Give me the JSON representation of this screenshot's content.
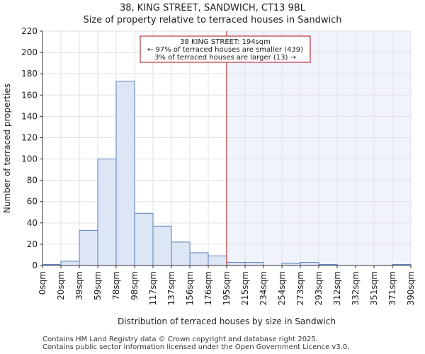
{
  "chart_data": {
    "type": "bar",
    "title": "38, KING STREET, SANDWICH, CT13 9BL",
    "subtitle": "Size of property relative to terraced houses in Sandwich",
    "xlabel": "Distribution of terraced houses by size in Sandwich",
    "ylabel": "Number of terraced properties",
    "ylim": [
      0,
      220
    ],
    "yticks": [
      0,
      20,
      40,
      60,
      80,
      100,
      120,
      140,
      160,
      180,
      200,
      220
    ],
    "x_tick_labels": [
      "0sqm",
      "20sqm",
      "39sqm",
      "59sqm",
      "78sqm",
      "98sqm",
      "117sqm",
      "137sqm",
      "156sqm",
      "176sqm",
      "195sqm",
      "215sqm",
      "234sqm",
      "254sqm",
      "273sqm",
      "293sqm",
      "312sqm",
      "332sqm",
      "351sqm",
      "371sqm",
      "390sqm"
    ],
    "values": [
      1,
      4,
      33,
      100,
      173,
      49,
      37,
      22,
      12,
      9,
      3,
      3,
      0,
      2,
      3,
      1,
      0,
      0,
      0,
      1
    ],
    "marker_bin_position": 10,
    "annotation": {
      "line1": "38 KING STREET: 194sqm",
      "line2": "← 97% of terraced houses are smaller (439)",
      "line3": "3% of terraced houses are larger (13) →"
    },
    "colors": {
      "bar_fill": "#dce6f4",
      "bar_edge": "#5b7fbf",
      "marker_line": "#aa1111",
      "shade_fill": "#f0f3fb",
      "grid": "#e0e0e0"
    }
  },
  "footer": {
    "line1": "Contains HM Land Registry data © Crown copyright and database right 2025.",
    "line2": "Contains public sector information licensed under the Open Government Licence v3.0."
  }
}
